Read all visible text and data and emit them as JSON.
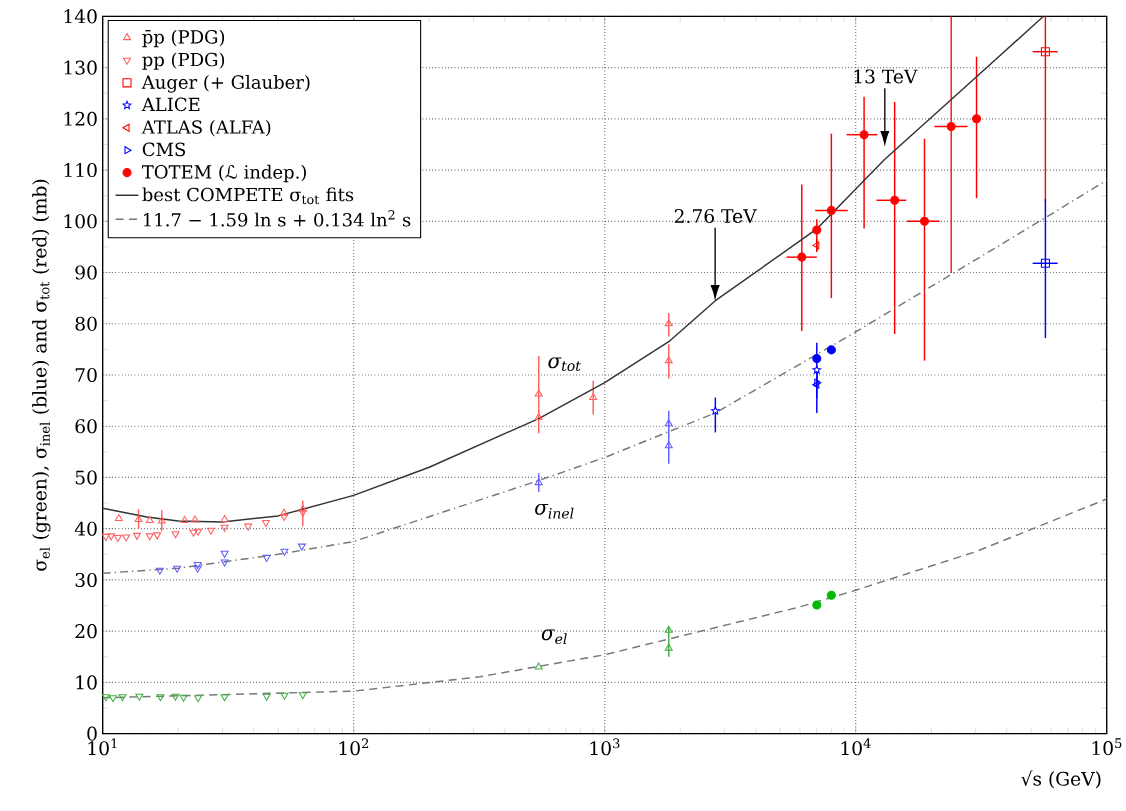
{
  "chart_data": {
    "type": "scatter",
    "xlabel": "√s  (GeV)",
    "ylabel": "σ$_{el}$ (green), σ$_{inel}$ (blue) and σ$_{tot}$ (red)   (mb)",
    "log": "x",
    "grid": true,
    "legend": "top left",
    "xlim": [
      10,
      100000
    ],
    "ylim": [
      0,
      140
    ],
    "xticks": [
      {
        "value": 10,
        "label": "10$^{1}$"
      },
      {
        "value": 100,
        "label": "10$^{2}$"
      },
      {
        "value": 1000,
        "label": "10$^{3}$"
      },
      {
        "value": 10000,
        "label": "10$^{4}$"
      },
      {
        "value": 100000,
        "label": "10$^{5}$"
      }
    ],
    "yticks": [
      0,
      10,
      20,
      30,
      40,
      50,
      60,
      70,
      80,
      90,
      100,
      110,
      120,
      130,
      140
    ],
    "series": [
      {
        "name": "p̄p (PDG)",
        "color": "#ff6060",
        "marker": "triangle",
        "x": [
          11.6,
          13.9,
          15.4,
          17.2,
          21.2,
          23.3,
          30.6,
          52.8,
          62.7,
          546,
          546,
          900,
          1800,
          1800
        ],
        "values": [
          42.0,
          41.8,
          41.6,
          41.5,
          41.6,
          41.7,
          41.8,
          43.0,
          43.8,
          66.3,
          61.7,
          65.6,
          80.0,
          72.8
        ],
        "errors": [
          null,
          [
            40.0,
            43.8
          ],
          null,
          [
            39.5,
            43.6
          ],
          null,
          null,
          null,
          null,
          [
            40.5,
            45.5
          ],
          [
            63.5,
            73.7
          ],
          [
            58.6,
            63.5
          ],
          [
            62.3,
            68.9
          ],
          [
            77.5,
            82.1
          ],
          [
            69.3,
            76.0
          ]
        ]
      },
      {
        "color": "#6060ff",
        "marker": "triangle",
        "x": [
          546,
          1800,
          1800
        ],
        "values": [
          49.0,
          60.5,
          56.2
        ],
        "errors": [
          [
            47.2,
            50.8
          ],
          [
            58.3,
            63.0
          ],
          [
            52.7,
            58.3
          ]
        ]
      },
      {
        "color": "#40b040",
        "marker": "triangle",
        "x": [
          546,
          1800,
          1800
        ],
        "values": [
          13.0,
          20.2,
          16.7
        ],
        "errors": [
          null,
          [
            18.4,
            20.8
          ],
          [
            15.0,
            18.4
          ]
        ]
      },
      {
        "name": "pp (PDG)",
        "color": "#ff6060",
        "marker": "triangle down",
        "x": [
          10.3,
          10.8,
          11.5,
          12.4,
          13.7,
          15.4,
          16.5,
          19.5,
          23,
          24,
          27,
          30.6,
          38,
          44.7,
          52.8,
          62.7
        ],
        "values": [
          38.5,
          38.6,
          38.3,
          38.4,
          38.7,
          38.6,
          38.8,
          39.0,
          39.3,
          39.5,
          39.7,
          40.3,
          40.5,
          41.2,
          42.4,
          43.2
        ]
      },
      {
        "color": "#6060ff",
        "marker": "triangle down",
        "x": [
          16.9,
          19.8,
          23.9,
          23.9,
          30.6,
          30.6,
          45.0,
          53.0,
          62.2
        ],
        "values": [
          31.9,
          32.3,
          32.3,
          33.0,
          33.5,
          35.2,
          34.4,
          35.6,
          36.6
        ]
      },
      {
        "color": "#40b040",
        "marker": "triangle down",
        "x": [
          10.3,
          11,
          12,
          14,
          17,
          19.5,
          21,
          24,
          30.6,
          45,
          53,
          62.7
        ],
        "values": [
          7.2,
          7.0,
          7.2,
          7.3,
          7.2,
          7.3,
          7.1,
          7.0,
          7.2,
          7.3,
          7.5,
          7.6
        ]
      },
      {
        "name": "Auger (+ Glauber)",
        "color": "#ff0000",
        "marker": "square",
        "x": [
          57000
        ],
        "values": [
          133.1
        ],
        "errors": [
          [
            103.9,
            140
          ]
        ],
        "xerrors": [
          [
            50700,
            63800
          ]
        ]
      },
      {
        "color": "#0000ff",
        "marker": "square",
        "x": [
          57000
        ],
        "values": [
          91.8
        ],
        "errors": [
          [
            77.2,
            104.3
          ]
        ],
        "xerrors": [
          [
            50700,
            63800
          ]
        ]
      },
      {
        "name": "ALICE",
        "color": "#0000ff",
        "marker": "star",
        "x": [
          2760,
          7000
        ],
        "values": [
          63.0,
          71.0
        ],
        "errors": [
          [
            58.8,
            65.6
          ],
          [
            67.5,
            76.3
          ]
        ]
      },
      {
        "name": "ATLAS (ALFA)",
        "color": "#ff0000",
        "marker": "triangle left",
        "x": [
          7000
        ],
        "values": [
          95.3
        ],
        "errors": [
          [
            94.0,
            96.6
          ]
        ]
      },
      {
        "color": "#0000ff",
        "marker": "triangle left",
        "x": [
          7000
        ],
        "values": [
          68.1
        ],
        "errors": [
          [
            62.6,
            71.4
          ]
        ]
      },
      {
        "name": "CMS",
        "color": "#0000ff",
        "marker": "triangle right",
        "x": [
          7000
        ],
        "values": [
          68.5
        ],
        "errors": [
          [
            65.5,
            71.0
          ]
        ]
      },
      {
        "name": "TOTEM (ℒ indep.)",
        "color": "#ff0000",
        "marker": "circle",
        "x": [
          7000,
          8000
        ],
        "values": [
          98.3,
          102.1
        ],
        "errors": [
          [
            94.2,
            100.4
          ],
          [
            85.0,
            117.1
          ]
        ],
        "xerrors": [
          null,
          [
            6900,
            9300
          ]
        ]
      },
      {
        "color": "#0000ff",
        "marker": "circle",
        "x": [
          7000,
          8000
        ],
        "values": [
          73.2,
          74.9
        ]
      },
      {
        "color": "#00bb00",
        "marker": "circle",
        "x": [
          7000,
          8000
        ],
        "values": [
          25.1,
          27.0
        ]
      },
      {
        "color": "#ff0000",
        "marker": "circle",
        "x": [
          6100,
          10800,
          14300,
          18800,
          24000,
          30300
        ],
        "values": [
          93.0,
          116.9,
          104.1,
          100.0,
          118.5,
          120.0
        ],
        "errors": [
          [
            78.6,
            107.2
          ],
          [
            98.6,
            124.3
          ],
          [
            78.0,
            123.3
          ],
          [
            72.8,
            116.1
          ],
          [
            89.9,
            140
          ],
          [
            104.5,
            132.1
          ]
        ],
        "xerrors": [
          [
            5300,
            7000
          ],
          [
            9200,
            12200
          ],
          [
            12100,
            15900
          ],
          [
            16000,
            21600
          ],
          [
            20600,
            27900
          ],
          null
        ]
      },
      {
        "name": "best COMPETE σ$_{tot}$ fits",
        "type": "line",
        "line_style": "solid",
        "color": "#333333",
        "x": [
          10,
          15,
          20,
          30,
          50,
          100,
          200,
          546,
          1000,
          1800,
          2760,
          7000,
          13000,
          30000,
          56000
        ],
        "values": [
          44.0,
          42.3,
          41.5,
          41.3,
          42.5,
          46.5,
          52.0,
          61.5,
          68.5,
          76.5,
          84.5,
          98.5,
          112.0,
          128.0,
          140.0
        ]
      },
      {
        "type": "line",
        "line_style": "dashdot",
        "color": "#777777",
        "x": [
          10,
          20,
          50,
          100,
          546,
          1000,
          2760,
          10000,
          57000,
          100000
        ],
        "values": [
          31.3,
          32.3,
          35.0,
          37.5,
          49.4,
          53.9,
          62.6,
          78.4,
          100.7,
          108.0
        ]
      },
      {
        "name": "11.7 − 1.59 ln s + 0.134 ln$^{2}$ s",
        "type": "line",
        "line_style": "dashed",
        "color": "#777777",
        "x": [
          10,
          100,
          318,
          1000,
          5950,
          10000,
          30000,
          100000
        ],
        "values": [
          7.0,
          8.3,
          11.1,
          15.4,
          24.7,
          28.0,
          35.5,
          45.8
        ]
      }
    ],
    "annotations": [
      "2.76 TeV",
      "13 TeV",
      "σ$_{tot}$",
      "σ$_{inel}$",
      "σ$_{el}$"
    ]
  }
}
